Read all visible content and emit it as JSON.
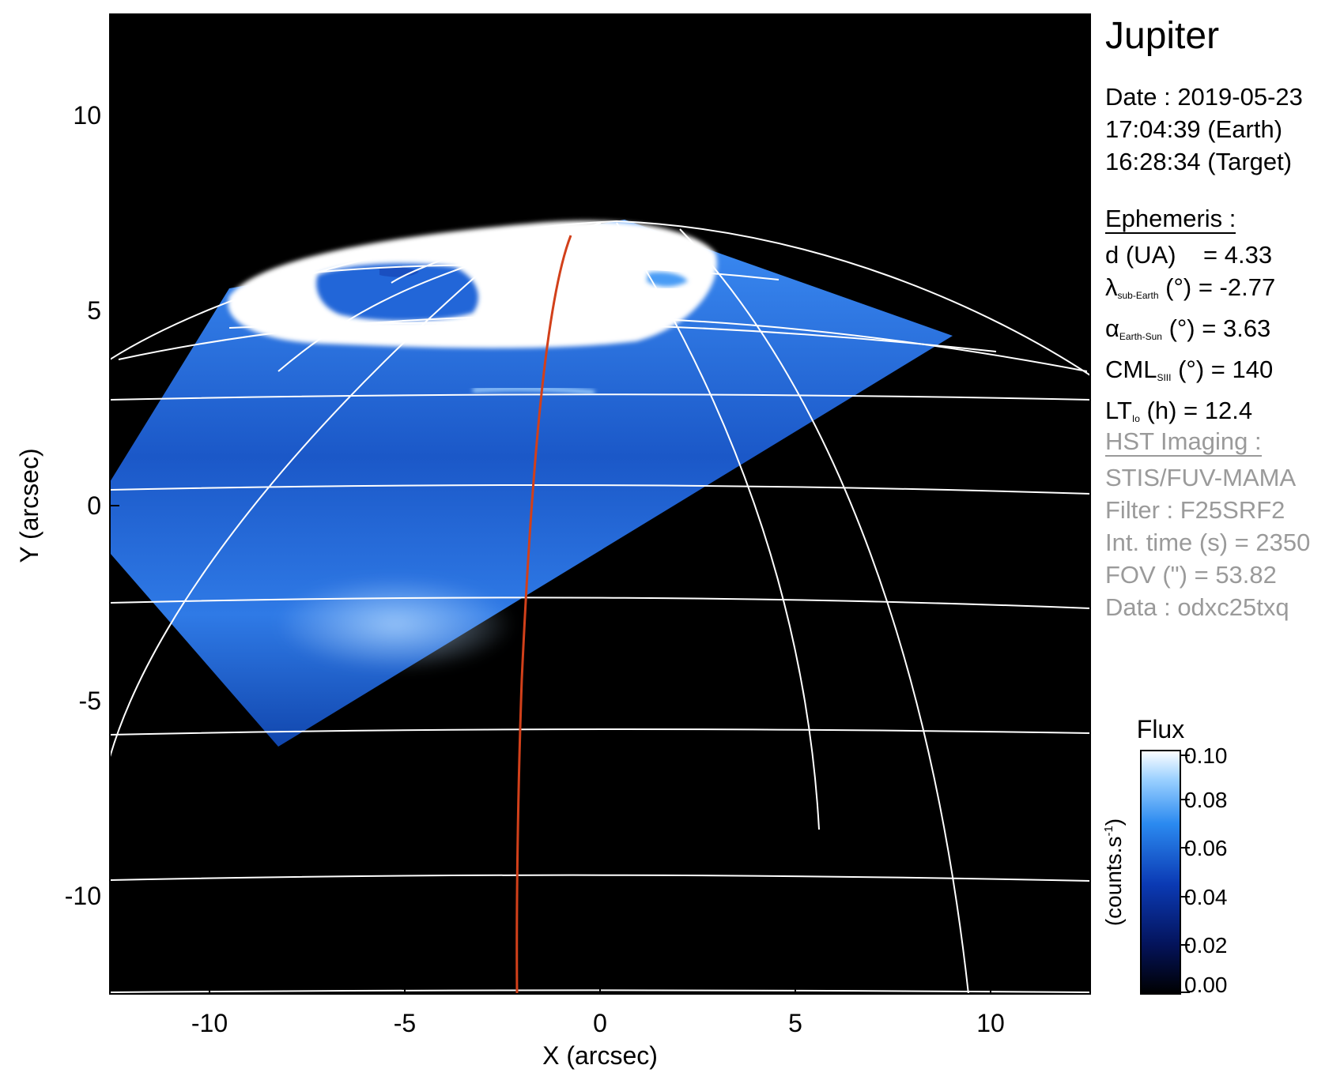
{
  "title": "Jupiter",
  "observation": {
    "date_line": "Date : 2019-05-23",
    "time_earth": "17:04:39 (Earth)",
    "time_target": "16:28:34 (Target)"
  },
  "ephemeris": {
    "header": "Ephemeris :",
    "d_label": "d (UA)",
    "d_value": "= 4.33",
    "lambda_sym": "λ",
    "lambda_sub": "sub-Earth",
    "lambda_unit": "(°)",
    "lambda_value": "= -2.77",
    "alpha_sym": "α",
    "alpha_sub": "Earth-Sun",
    "alpha_unit": "(°)",
    "alpha_value": "= 3.63",
    "cml_sym": "CML",
    "cml_sub": "SIII",
    "cml_unit": "(°)",
    "cml_value": "= 140",
    "lt_sym": "LT",
    "lt_sub": "Io",
    "lt_unit": "(h)",
    "lt_value": "= 12.4"
  },
  "hst": {
    "header": "HST Imaging :",
    "instrument": "STIS/FUV-MAMA",
    "filter": "Filter : F25SRF2",
    "int_time": "Int. time (s) = 2350",
    "fov": "FOV (\") = 53.82",
    "data": "Data : odxc25txq"
  },
  "axes": {
    "xlabel": "X (arcsec)",
    "ylabel": "Y (arcsec)",
    "xticks": [
      "-10",
      "-5",
      "0",
      "5",
      "10"
    ],
    "yticks": [
      "10",
      "5",
      "0",
      "-5",
      "-10"
    ]
  },
  "colorbar": {
    "title": "Flux",
    "unit_label": "(counts.s",
    "unit_sup": "-1",
    "unit_close": ")",
    "ticks": [
      "0.10",
      "0.08",
      "0.06",
      "0.04",
      "0.02",
      "0.00"
    ]
  },
  "colors": {
    "background": "#000000",
    "emission": "#1f6fe0",
    "aurora": "#ffffff",
    "grid": "#ffffff",
    "trace": "#d2401a"
  }
}
